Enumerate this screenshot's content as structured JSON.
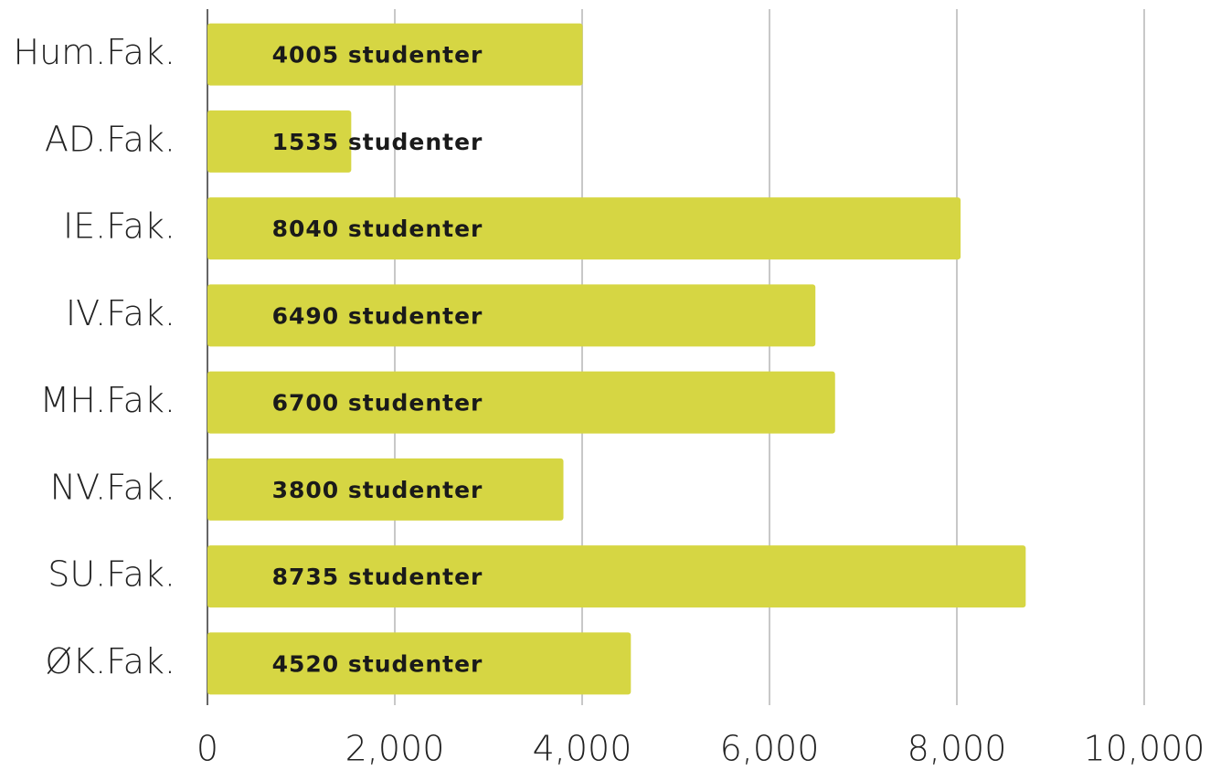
{
  "chart_data": {
    "type": "barh",
    "categories": [
      "Hum.Fak.",
      "AD.Fak.",
      "IE.Fak.",
      "IV.Fak.",
      "MH.Fak.",
      "NV.Fak.",
      "SU.Fak.",
      "ØK.Fak."
    ],
    "values": [
      4005,
      1535,
      8040,
      6490,
      6700,
      3800,
      8735,
      4520
    ],
    "value_labels": [
      "4005 studenter",
      "1535 studenter",
      "8040 studenter",
      "6490 studenter",
      "6700 studenter",
      "3800 studenter",
      "8735 studenter",
      "4520 studenter"
    ],
    "color": "#d6d643",
    "xlim": [
      0,
      10000
    ],
    "xticks": [
      0,
      {
        "value": 2000,
        "label": "2,000"
      },
      {
        "value": 4000,
        "label": "4,000"
      },
      {
        "value": 6000,
        "label": "6,000"
      },
      {
        "value": 8000,
        "label": "8,000"
      },
      {
        "value": 10000,
        "label": "10,000"
      }
    ],
    "grid": true
  }
}
